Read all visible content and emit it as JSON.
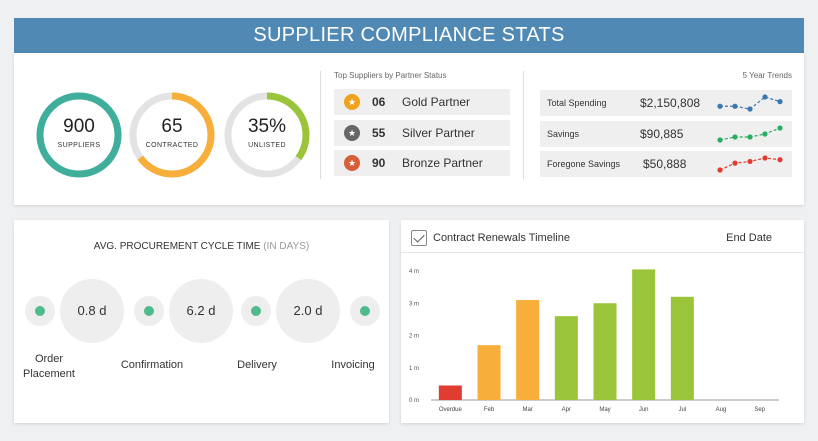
{
  "header": {
    "title": "SUPPLIER COMPLIANCE STATS"
  },
  "donuts": [
    {
      "value": "900",
      "label": "SUPPLIERS",
      "fraction": 1.0,
      "color": "#3fae9b"
    },
    {
      "value": "65",
      "label": "CONTRACTED",
      "fraction": 0.65,
      "color": "#f7ae3a"
    },
    {
      "value": "35%",
      "label": "UNLISTED",
      "fraction": 0.35,
      "color": "#9ac43a"
    }
  ],
  "partners": {
    "heading": "Top Suppliers by Partner Status",
    "items": [
      {
        "count": "06",
        "name": "Gold Partner",
        "color": "#f0a21f",
        "icon": "star-medal-icon"
      },
      {
        "count": "55",
        "name": "Silver Partner",
        "color": "#666666",
        "icon": "star-medal-icon"
      },
      {
        "count": "90",
        "name": "Bronze Partner",
        "color": "#d65f3a",
        "icon": "star-medal-icon"
      }
    ]
  },
  "trends": {
    "heading": "5 Year Trends",
    "items": [
      {
        "label": "Total Spending",
        "value": "$2,150,808",
        "color": "#3c78b0",
        "points": [
          3,
          3,
          2.4,
          5,
          4
        ]
      },
      {
        "label": "Savings",
        "value": "$90,885",
        "color": "#27ae60",
        "points": [
          1,
          2,
          2,
          3,
          5
        ]
      },
      {
        "label": "Foregone Savings",
        "value": "$50,888",
        "color": "#e03c31",
        "points": [
          1,
          3,
          3.5,
          4.5,
          4
        ]
      }
    ]
  },
  "cycle": {
    "title": "AVG. PROCUREMENT CYCLE TIME",
    "title_unit": "(IN DAYS)",
    "values": [
      "0.8 d",
      "6.2 d",
      "2.0 d"
    ],
    "stages": [
      "Order Placement",
      "Confirmation",
      "Delivery",
      "Invoicing"
    ]
  },
  "timeline": {
    "title": "Contract Renewals Timeline",
    "end_label": "End Date"
  },
  "chart_data": {
    "type": "bar",
    "categories": [
      "Overdue",
      "Feb",
      "Mar",
      "Apr",
      "May",
      "Jun",
      "Jul",
      "Aug",
      "Sep"
    ],
    "values": [
      0.45,
      1.7,
      3.1,
      2.6,
      3.0,
      4.05,
      3.2,
      0,
      0
    ],
    "colors": [
      "#e03c31",
      "#f7ae3a",
      "#f7ae3a",
      "#9ac43a",
      "#9ac43a",
      "#9ac43a",
      "#9ac43a",
      "#9ac43a",
      "#9ac43a"
    ],
    "yticks": [
      "0 m",
      "1 m",
      "2 m",
      "3 m",
      "4 m"
    ],
    "ylim": [
      0,
      4
    ],
    "title": "",
    "xlabel": "",
    "ylabel": ""
  }
}
